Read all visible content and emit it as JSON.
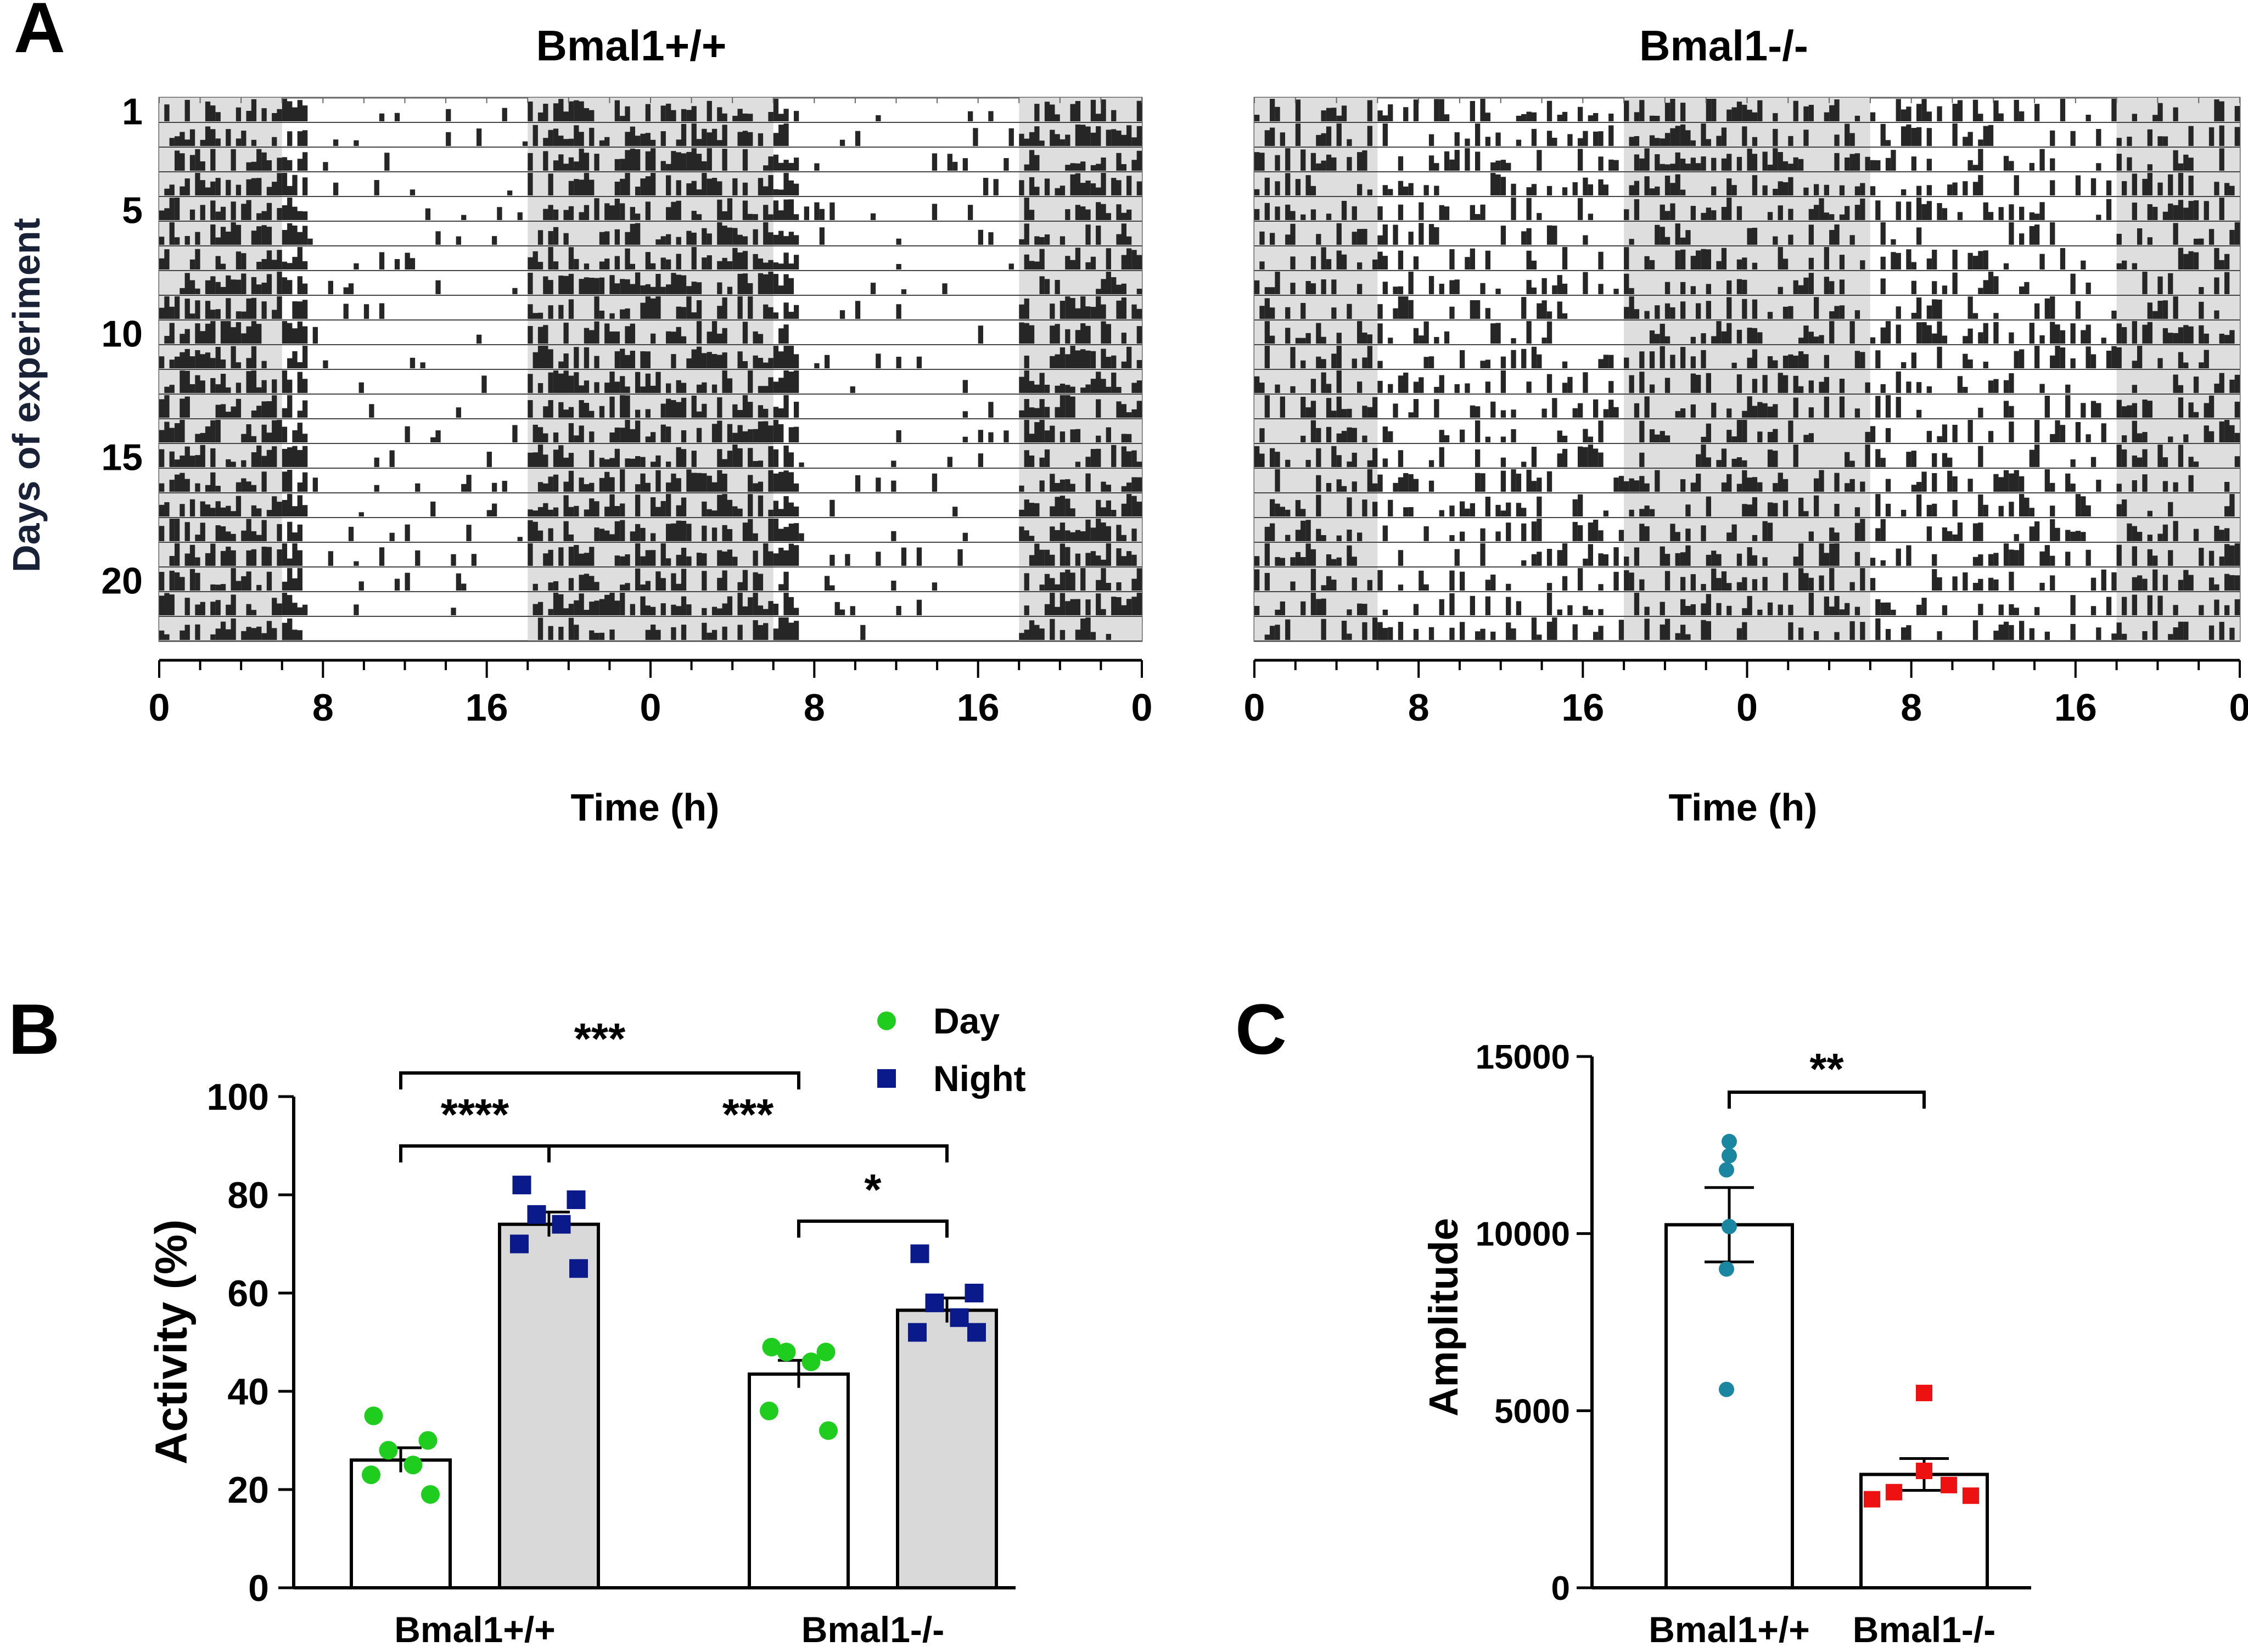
{
  "figure": {
    "panel_letters": [
      "A",
      "B",
      "C"
    ]
  },
  "chart_data": [
    {
      "panel": "A",
      "type": "actogram",
      "title_left": "Bmal1+/+",
      "title_right": "Bmal1-/-",
      "ylabel": "Days of experiment",
      "xlabel": "Time (h)",
      "day_ticks": [
        "1",
        "5",
        "10",
        "15",
        "20"
      ],
      "day_tick_values": [
        1,
        5,
        10,
        15,
        20
      ],
      "n_days": 22,
      "x_ticks": [
        "0",
        "8",
        "16",
        "0",
        "8",
        "16",
        "0"
      ],
      "x_tick_values": [
        0,
        8,
        16,
        24,
        32,
        40,
        48
      ],
      "dark_periods_h": [
        [
          0,
          6
        ],
        [
          18,
          30
        ],
        [
          42,
          48
        ]
      ],
      "wt_activity": "concentrated in dark phase (onset at light-dark transitions)",
      "ko_activity": "distributed across light and dark phases"
    },
    {
      "panel": "B",
      "type": "bar",
      "ylabel": "Activity (%)",
      "ylim": [
        0,
        100
      ],
      "yticks": [
        "0",
        "20",
        "40",
        "60",
        "80",
        "100"
      ],
      "ytick_values": [
        0,
        20,
        40,
        60,
        80,
        100
      ],
      "categories": [
        "Bmal1+/+",
        "Bmal1-/-"
      ],
      "legend": [
        {
          "label": "Day",
          "color": "#1ecd1e",
          "marker": "circle"
        },
        {
          "label": "Night",
          "color": "#0b1a8a",
          "marker": "square"
        }
      ],
      "series": [
        {
          "name": "Day",
          "means": [
            26,
            43.5
          ],
          "sem": [
            2.5,
            2.8
          ],
          "bar_fill": "#ffffff",
          "points": [
            [
              35,
              30,
              28,
              25,
              23,
              19
            ],
            [
              49,
              48,
              48,
              46,
              36,
              32
            ]
          ]
        },
        {
          "name": "Night",
          "means": [
            74,
            56.5
          ],
          "sem": [
            2.5,
            2.5
          ],
          "bar_fill": "#d9d9d9",
          "points": [
            [
              82,
              79,
              76,
              74,
              70,
              65
            ],
            [
              68,
              60,
              58,
              55,
              52,
              52
            ]
          ]
        }
      ],
      "significance": [
        {
          "label": "***",
          "from": "Bmal1+/+ Day",
          "to": "Bmal1-/- Day"
        },
        {
          "label": "****",
          "from": "Bmal1+/+ Day",
          "to": "Bmal1+/+ Night"
        },
        {
          "label": "***",
          "from": "Bmal1+/+ Night",
          "to": "Bmal1-/- Night"
        },
        {
          "label": "*",
          "from": "Bmal1-/- Day",
          "to": "Bmal1-/- Night"
        }
      ]
    },
    {
      "panel": "C",
      "type": "bar",
      "ylabel": "Amplitude",
      "ylim": [
        0,
        15000
      ],
      "yticks": [
        "0",
        "5000",
        "10000",
        "15000"
      ],
      "ytick_values": [
        0,
        5000,
        10000,
        15000
      ],
      "categories": [
        "Bmal1+/+",
        "Bmal1-/-"
      ],
      "means": [
        10250,
        3200
      ],
      "sem": [
        1050,
        450
      ],
      "colors": [
        "#1a86a0",
        "#ee1111"
      ],
      "points": [
        [
          12600,
          12200,
          11800,
          10200,
          9000,
          5600
        ],
        [
          5500,
          3300,
          2900,
          2700,
          2600,
          2500
        ]
      ],
      "significance": [
        {
          "label": "**",
          "from": "Bmal1+/+",
          "to": "Bmal1-/-"
        }
      ]
    }
  ]
}
